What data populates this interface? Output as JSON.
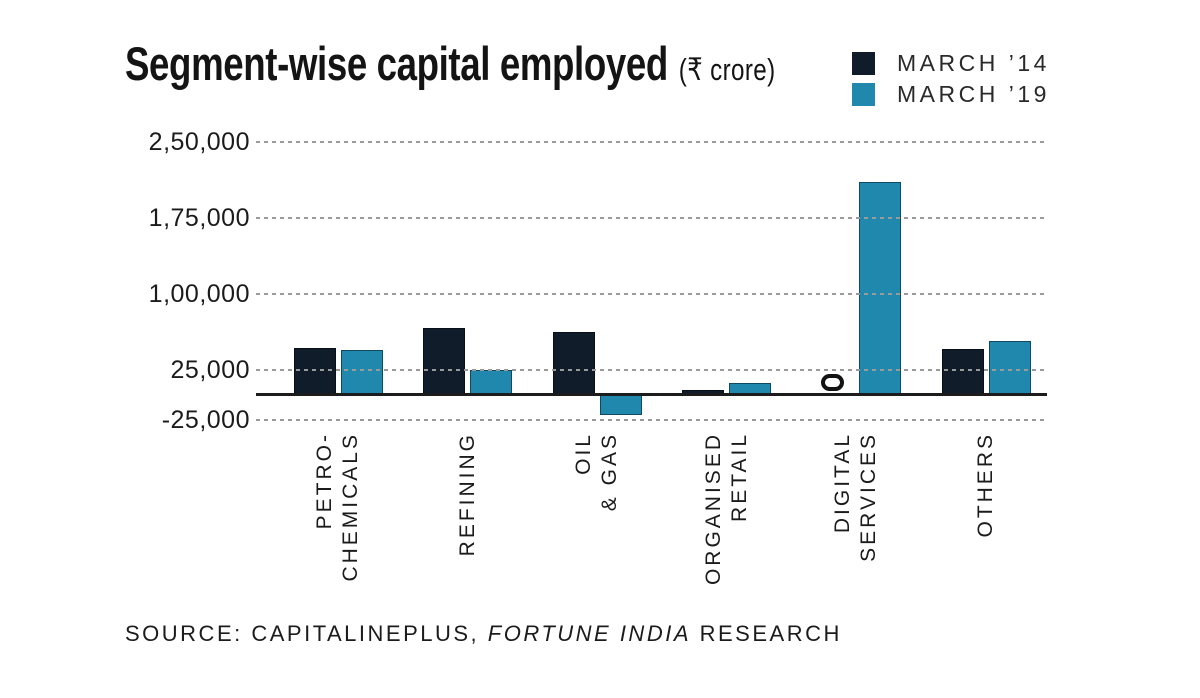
{
  "header": {
    "title": "Segment-wise capital employed",
    "unit": "(₹ crore)"
  },
  "legend": {
    "items": [
      {
        "label": "MARCH ’14",
        "color": "#101c29"
      },
      {
        "label": "MARCH ’19",
        "color": "#2088ad"
      }
    ]
  },
  "source": {
    "prefix": "SOURCE: CAPITALINEPLUS, ",
    "italic": "FORTUNE INDIA",
    "suffix": " RESEARCH"
  },
  "chart_data": {
    "type": "bar",
    "title": "Segment-wise capital employed (₹ crore)",
    "unit": "₹ crore",
    "categories": [
      "PETRO-\nCHEMICALS",
      "REFINING",
      "OIL\n& GAS",
      "ORGANISED\nRETAIL",
      "DIGITAL\nSERVICES",
      "OTHERS"
    ],
    "series": [
      {
        "name": "MARCH ’14",
        "color": "#101c29",
        "values": [
          46000,
          66000,
          62000,
          5000,
          0,
          45000
        ]
      },
      {
        "name": "MARCH ’19",
        "color": "#2088ad",
        "values": [
          44000,
          25000,
          -20000,
          12000,
          210000,
          53000
        ]
      }
    ],
    "y_ticks": [
      {
        "value": 250000,
        "label": "2,50,000"
      },
      {
        "value": 175000,
        "label": "1,75,000"
      },
      {
        "value": 100000,
        "label": "1,00,000"
      },
      {
        "value": 25000,
        "label": "25,000"
      },
      {
        "value": -25000,
        "label": "-25,000"
      }
    ],
    "ylim": [
      -25000,
      250000
    ],
    "grid": "horizontal-dashed",
    "legend_position": "top-right",
    "notes": "Digital Services MARCH ’14 value is zero, shown as an outlined 0 at the baseline"
  }
}
